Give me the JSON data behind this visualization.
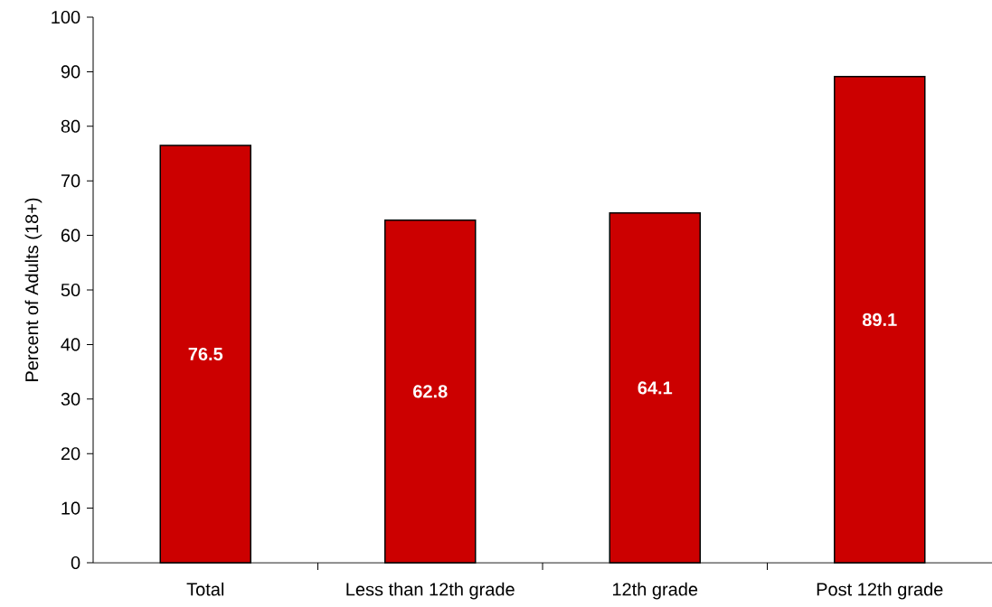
{
  "chart_data": {
    "type": "bar",
    "ylabel": "Percent of Adults (18+)",
    "categories": [
      "Total",
      "Less than 12th grade",
      "12th grade",
      "Post 12th grade"
    ],
    "values": [
      76.5,
      62.8,
      64.1,
      89.1
    ],
    "color": "#cc0000",
    "ylim": [
      0,
      100
    ],
    "yticks": [
      0,
      10,
      20,
      30,
      40,
      50,
      60,
      70,
      80,
      90,
      100
    ],
    "data_labels": true
  }
}
